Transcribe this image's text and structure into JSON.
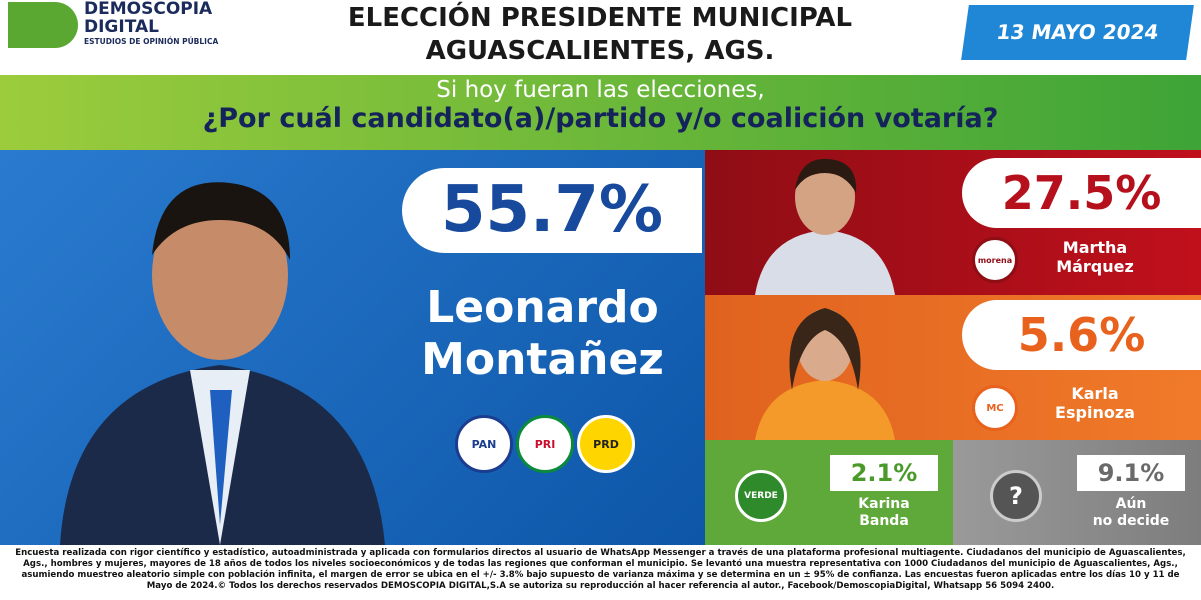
{
  "header": {
    "logo": {
      "name": "DEMOSCOPIA",
      "name2": "DIGITAL",
      "tagline": "ESTUDIOS DE OPINIÓN PÚBLICA"
    },
    "title_line1": "ELECCIÓN PRESIDENTE MUNICIPAL",
    "title_line2": "AGUASCALIENTES, AGS.",
    "date": "13 MAYO 2024"
  },
  "question": {
    "line1": "Si hoy fueran las elecciones,",
    "line2": "¿Por cuál candidato(a)/partido y/o coalición votaría?"
  },
  "leader": {
    "percent": "55.7%",
    "name_line1": "Leonardo",
    "name_line2": "Montañez",
    "parties": [
      "PAN",
      "PRI",
      "PRD"
    ]
  },
  "candidates": [
    {
      "percent": "27.5%",
      "name_line1": "Martha",
      "name_line2": "Márquez",
      "party": "morena"
    },
    {
      "percent": "5.6%",
      "name_line1": "Karla",
      "name_line2": "Espinoza",
      "party": "MC"
    },
    {
      "percent": "2.1%",
      "name_line1": "Karina",
      "name_line2": "Banda",
      "party": "VERDE"
    },
    {
      "percent": "9.1%",
      "name_line1": "Aún",
      "name_line2": "no decide",
      "party": "?"
    }
  ],
  "footer": "Encuesta realizada con rigor científico y estadístico, autoadministrada y aplicada con formularios directos al usuario de WhatsApp Messenger a través de una plataforma profesional multiagente. Ciudadanos del municipio de Aguascalientes, Ags., hombres y mujeres, mayores de 18 años de todos los niveles socioeconómicos y de todas las regiones que conforman el municipio. Se levantó una muestra representativa con 1000 Ciudadanos del municipio de Aguascalientes, Ags., asumiendo muestreo aleatorio simple con población infinita, el margen de error se ubica en el +/- 3.8% bajo supuesto de varianza máxima y se determina en un ± 95% de confianza. Las encuestas fueron aplicadas entre los días 10 y 11 de Mayo de 2024.© Todos los derechos reservados DEMOSCOPIA DIGITAL,S.A se autoriza su reproducción al hacer referencia al autor., Facebook/DemoscopiaDigital, Whatsapp 56 5094 2400."
}
